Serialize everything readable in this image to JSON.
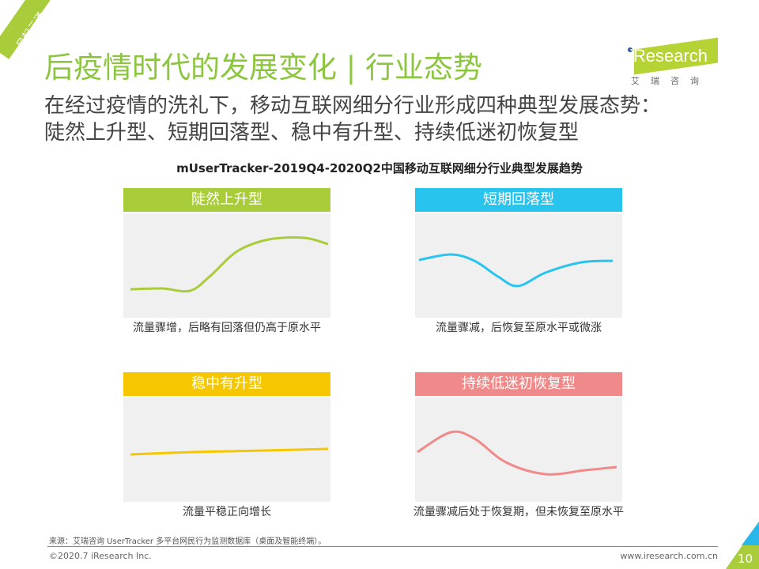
{
  "corner_tag": "风起云涌",
  "title": "后疫情时代的发展变化 | 行业态势",
  "logo": {
    "brand": "iResearch",
    "sub": "艾瑞咨询"
  },
  "subtitle": [
    "在经过疫情的洗礼下，移动互联网细分行业形成四种典型发展态势：",
    "陡然上升型、短期回落型、稳中有升型、持续低迷初恢复型"
  ],
  "chart_title": "mUserTracker-2019Q4-2020Q2中国移动互联网细分行业典型发展趋势",
  "panels": [
    {
      "label": "陡然上升型",
      "caption": "流量骤增，后略有回落但仍高于原水平",
      "color": "#a9cc3a"
    },
    {
      "label": "短期回落型",
      "caption": "流量骤减，后恢复至原水平或微涨",
      "color": "#29c4ee"
    },
    {
      "label": "稳中有升型",
      "caption": "流量平稳正向增长",
      "color": "#f6c700"
    },
    {
      "label": "持续低迷初恢复型",
      "caption": "流量骤减后处于恢复期，但未恢复至原水平",
      "color": "#f08a8a"
    }
  ],
  "footer": {
    "source": "来源：艾瑞咨询 UserTracker 多平台网民行为监测数据库（桌面及智能终端）。",
    "copyright": "©2020.7 iResearch Inc.",
    "url": "www.iresearch.com.cn",
    "page": "10"
  }
}
